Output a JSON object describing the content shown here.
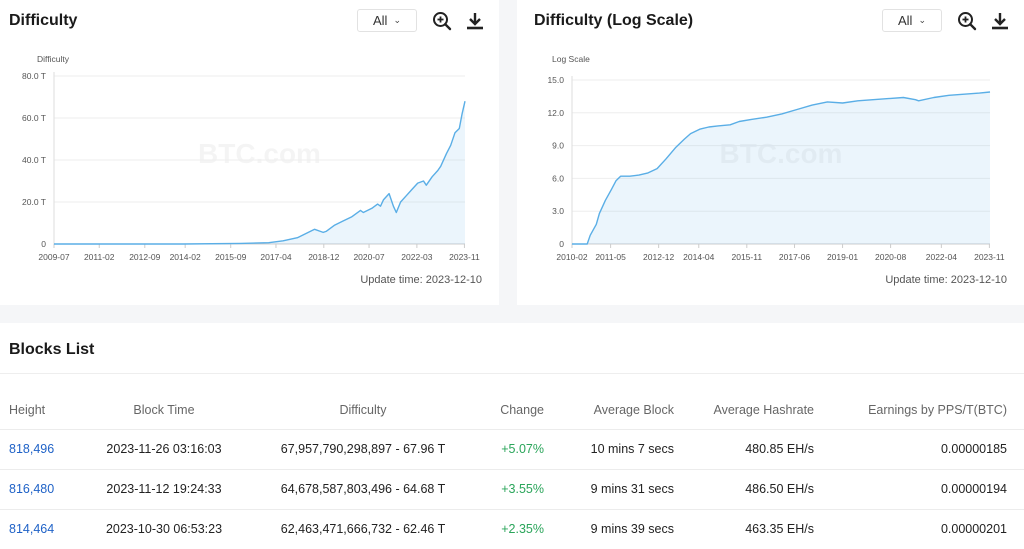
{
  "charts": [
    {
      "title": "Difficulty",
      "range_select": "All",
      "update_time": "Update time: 2023-12-10"
    },
    {
      "title": "Difficulty (Log Scale)",
      "range_select": "All",
      "update_time": "Update time: 2023-12-10"
    }
  ],
  "blocks": {
    "title": "Blocks List",
    "headers": [
      "Height",
      "Block Time",
      "Difficulty",
      "Change",
      "Average Block",
      "Average Hashrate",
      "Earnings by PPS/T(BTC)"
    ],
    "rows": [
      {
        "height": "818,496",
        "time": "2023-11-26 03:16:03",
        "difficulty": "67,957,790,298,897 - 67.96 T",
        "change": "+5.07%",
        "avg_block": "10 mins 7 secs",
        "hashrate": "480.85 EH/s",
        "earnings": "0.00000185"
      },
      {
        "height": "816,480",
        "time": "2023-11-12 19:24:33",
        "difficulty": "64,678,587,803,496 - 64.68 T",
        "change": "+3.55%",
        "avg_block": "9 mins 31 secs",
        "hashrate": "486.50 EH/s",
        "earnings": "0.00000194"
      },
      {
        "height": "814,464",
        "time": "2023-10-30 06:53:23",
        "difficulty": "62,463,471,666,732 - 62.46 T",
        "change": "+2.35%",
        "avg_block": "9 mins 39 secs",
        "hashrate": "463.35 EH/s",
        "earnings": "0.00000201"
      }
    ]
  },
  "chart_data": [
    {
      "type": "area",
      "title": "Difficulty",
      "ylabel": "Difficulty",
      "watermark": "BTC.com",
      "y_ticks": [
        0,
        20,
        40,
        60,
        80
      ],
      "y_tick_labels": [
        "0",
        "20.0 T",
        "40.0 T",
        "60.0 T",
        "80.0 T"
      ],
      "ylim": [
        0,
        80
      ],
      "xlim": [
        2009.5,
        2023.85
      ],
      "x_tick_labels": [
        "2009-07",
        "2011-02",
        "2012-09",
        "2014-02",
        "2015-09",
        "2017-04",
        "2018-12",
        "2020-07",
        "2022-03",
        "2023-11"
      ],
      "x_tick_positions": [
        2009.5,
        2011.08,
        2012.67,
        2014.08,
        2015.67,
        2017.25,
        2018.92,
        2020.5,
        2022.17,
        2023.83
      ],
      "color": "#5aaee6",
      "x": [
        2009.5,
        2012.0,
        2014.0,
        2016.0,
        2017.0,
        2017.5,
        2018.0,
        2018.3,
        2018.6,
        2018.8,
        2018.9,
        2019.0,
        2019.3,
        2019.6,
        2019.9,
        2020.2,
        2020.3,
        2020.6,
        2020.8,
        2020.9,
        2021.0,
        2021.2,
        2021.35,
        2021.45,
        2021.6,
        2021.8,
        2022.0,
        2022.2,
        2022.4,
        2022.5,
        2022.7,
        2022.9,
        2023.0,
        2023.2,
        2023.35,
        2023.5,
        2023.65,
        2023.75,
        2023.85
      ],
      "values": [
        0,
        0,
        0.02,
        0.3,
        0.6,
        1.5,
        3.0,
        5.0,
        7.0,
        6.0,
        5.5,
        6.0,
        9.0,
        11.0,
        13.0,
        16.0,
        15.0,
        17.0,
        19.0,
        18.0,
        21.0,
        24.0,
        18.0,
        15.0,
        20.0,
        23.0,
        26.0,
        29.0,
        30.0,
        28.0,
        32.0,
        35.0,
        37.0,
        43.0,
        47.0,
        53.0,
        55.0,
        62.0,
        68.0
      ]
    },
    {
      "type": "area",
      "title": "Difficulty (Log Scale)",
      "ylabel": "Log Scale",
      "watermark": "BTC.com",
      "y_ticks": [
        0,
        3,
        6,
        9,
        12,
        15
      ],
      "y_tick_labels": [
        "0",
        "3.0",
        "6.0",
        "9.0",
        "12.0",
        "15.0"
      ],
      "ylim": [
        0,
        15
      ],
      "xlim": [
        2010.1,
        2023.85
      ],
      "x_tick_labels": [
        "2010-02",
        "2011-05",
        "2012-12",
        "2014-04",
        "2015-11",
        "2017-06",
        "2019-01",
        "2020-08",
        "2022-04",
        "2023-11"
      ],
      "x_tick_positions": [
        2010.1,
        2011.37,
        2012.95,
        2014.27,
        2015.85,
        2017.42,
        2019.0,
        2020.58,
        2022.25,
        2023.83
      ],
      "color": "#5aaee6",
      "x": [
        2010.1,
        2010.6,
        2010.7,
        2010.9,
        2011.0,
        2011.2,
        2011.4,
        2011.55,
        2011.7,
        2012.0,
        2012.3,
        2012.6,
        2012.9,
        2013.2,
        2013.5,
        2013.8,
        2014.0,
        2014.3,
        2014.6,
        2014.9,
        2015.3,
        2015.6,
        2016.0,
        2016.5,
        2017.0,
        2017.5,
        2018.0,
        2018.5,
        2019.0,
        2019.5,
        2020.0,
        2020.5,
        2021.0,
        2021.4,
        2021.5,
        2022.0,
        2022.5,
        2023.0,
        2023.5,
        2023.85
      ],
      "values": [
        0,
        0,
        0.8,
        1.8,
        2.8,
        4.0,
        5.0,
        5.8,
        6.2,
        6.2,
        6.3,
        6.5,
        6.9,
        7.8,
        8.8,
        9.6,
        10.1,
        10.5,
        10.7,
        10.8,
        10.9,
        11.2,
        11.4,
        11.6,
        11.9,
        12.3,
        12.7,
        13.0,
        12.9,
        13.1,
        13.2,
        13.3,
        13.4,
        13.2,
        13.1,
        13.4,
        13.6,
        13.7,
        13.8,
        13.9
      ]
    }
  ]
}
